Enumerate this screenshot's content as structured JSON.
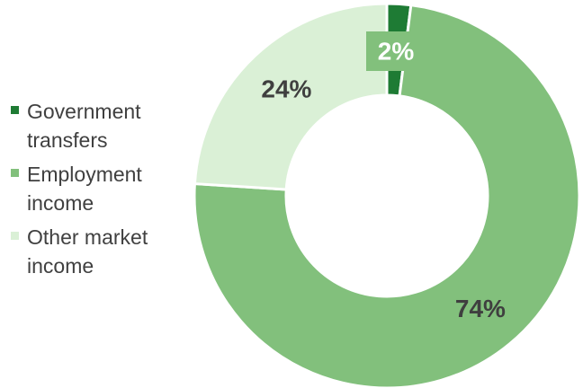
{
  "chart_data": {
    "type": "pie",
    "donut": true,
    "slices": [
      {
        "label": "Government transfers",
        "value": 2,
        "data_label": "2%",
        "color": "#1e7b34",
        "label_style": "boxed"
      },
      {
        "label": "Employment income",
        "value": 74,
        "data_label": "74%",
        "color": "#82c07c",
        "label_style": "plain"
      },
      {
        "label": "Other market income",
        "value": 24,
        "data_label": "24%",
        "color": "#daf0d6",
        "label_style": "plain"
      }
    ],
    "legend": {
      "placement": "left",
      "items": [
        "Government transfers",
        "Employment income",
        "Other market income"
      ]
    },
    "title": "",
    "start_angle_deg": 0,
    "direction": "clockwise"
  }
}
